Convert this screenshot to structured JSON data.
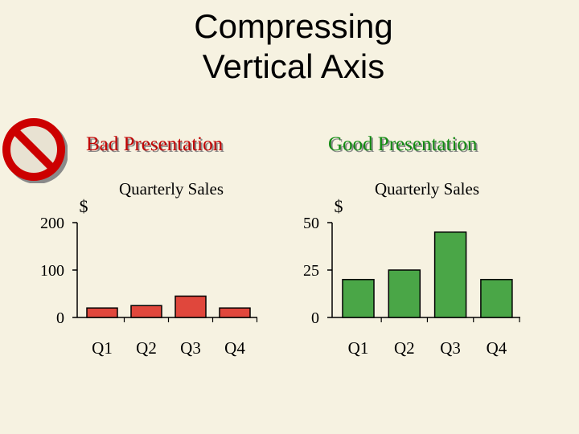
{
  "slide": {
    "title_line1": "Compressing",
    "title_line2": "Vertical Axis",
    "bad_label": "Bad Presentation",
    "good_label": "Good Presentation",
    "icon": "no-sign-icon",
    "colors": {
      "bad": "#c00000",
      "good": "#118a11",
      "background": "#f6f2e1"
    }
  },
  "chart_data": [
    {
      "type": "bar",
      "title": "Quarterly Sales",
      "ylabel": "$",
      "categories": [
        "Q1",
        "Q2",
        "Q3",
        "Q4"
      ],
      "values": [
        20,
        25,
        45,
        20
      ],
      "ylim": [
        0,
        200
      ],
      "yticks": [
        0,
        100,
        200
      ],
      "ytick_labels": [
        "0",
        "100",
        "200"
      ],
      "bar_color": "#e0473c"
    },
    {
      "type": "bar",
      "title": "Quarterly Sales",
      "ylabel": "$",
      "categories": [
        "Q1",
        "Q2",
        "Q3",
        "Q4"
      ],
      "values": [
        20,
        25,
        45,
        20
      ],
      "ylim": [
        0,
        50
      ],
      "yticks": [
        0,
        25,
        50
      ],
      "ytick_labels": [
        "0",
        "25",
        "50"
      ],
      "bar_color": "#4aa647"
    }
  ]
}
